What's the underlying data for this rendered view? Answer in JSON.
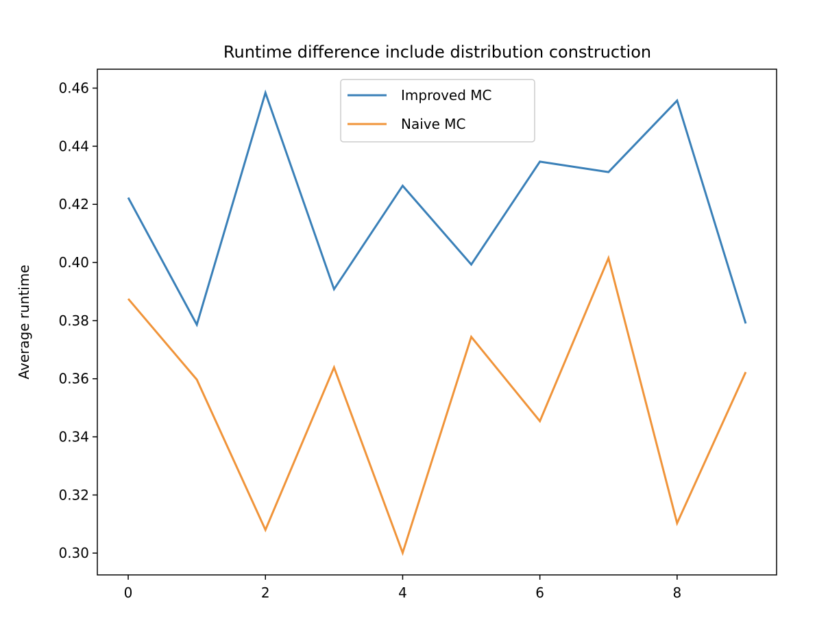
{
  "chart_data": {
    "type": "line",
    "title": "Runtime difference include distribution construction",
    "xlabel": "",
    "ylabel": "Average runtime",
    "x": [
      0,
      1,
      2,
      3,
      4,
      5,
      6,
      7,
      8,
      9
    ],
    "xlim": [
      -0.45,
      9.45
    ],
    "ylim": [
      0.2925,
      0.4665
    ],
    "xticks": [
      0,
      2,
      4,
      6,
      8
    ],
    "yticks": [
      0.3,
      0.32,
      0.34,
      0.36,
      0.38,
      0.4,
      0.42,
      0.44,
      0.46
    ],
    "xtick_labels": [
      "0",
      "2",
      "4",
      "6",
      "8"
    ],
    "ytick_labels": [
      "0.30",
      "0.32",
      "0.34",
      "0.36",
      "0.38",
      "0.40",
      "0.42",
      "0.44",
      "0.46"
    ],
    "grid": false,
    "legend": "upper-center",
    "series": [
      {
        "name": "Improved MC",
        "color": "#3a80b8",
        "values": [
          0.4223,
          0.3786,
          0.4584,
          0.3908,
          0.4264,
          0.3993,
          0.4347,
          0.4311,
          0.4557,
          0.379
        ]
      },
      {
        "name": "Naive MC",
        "color": "#f0943a",
        "values": [
          0.3875,
          0.3597,
          0.308,
          0.3639,
          0.3001,
          0.3744,
          0.3454,
          0.4015,
          0.3103,
          0.3623
        ]
      }
    ]
  }
}
